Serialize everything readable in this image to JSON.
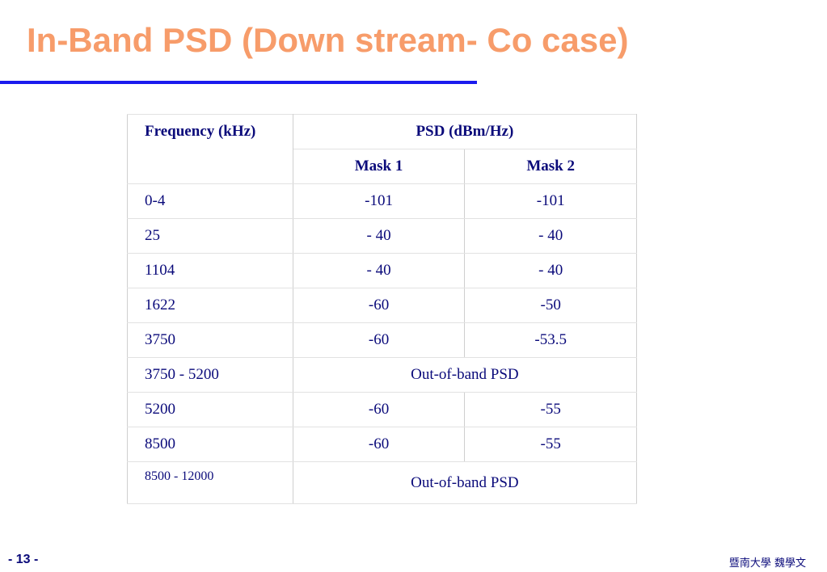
{
  "slide": {
    "title": "In-Band PSD (Down stream- Co case)",
    "page_number": "- 13 -",
    "footer": "暨南大學 魏學文"
  },
  "table": {
    "header": {
      "frequency": "Frequency (kHz)",
      "psd": "PSD (dBm/Hz)",
      "mask1": "Mask 1",
      "mask2": "Mask 2"
    },
    "rows": [
      {
        "freq": "0-4",
        "mask1": "-101",
        "mask2": "-101"
      },
      {
        "freq": "25",
        "mask1": "- 40",
        "mask2": "- 40"
      },
      {
        "freq": "1104",
        "mask1": "- 40",
        "mask2": "- 40"
      },
      {
        "freq": "1622",
        "mask1": "-60",
        "mask2": "-50"
      },
      {
        "freq": "3750",
        "mask1": "-60",
        "mask2": "-53.5"
      },
      {
        "freq": "3750 - 5200",
        "merged": "Out-of-band PSD"
      },
      {
        "freq": "5200",
        "mask1": "-60",
        "mask2": "-55"
      },
      {
        "freq": "8500",
        "mask1": "-60",
        "mask2": "-55"
      },
      {
        "freq": "8500 - 12000",
        "merged": "Out-of-band PSD"
      }
    ]
  },
  "colors": {
    "title": "#f79c6a",
    "rule": "#1a1aee",
    "text": "#0a0a7a"
  }
}
